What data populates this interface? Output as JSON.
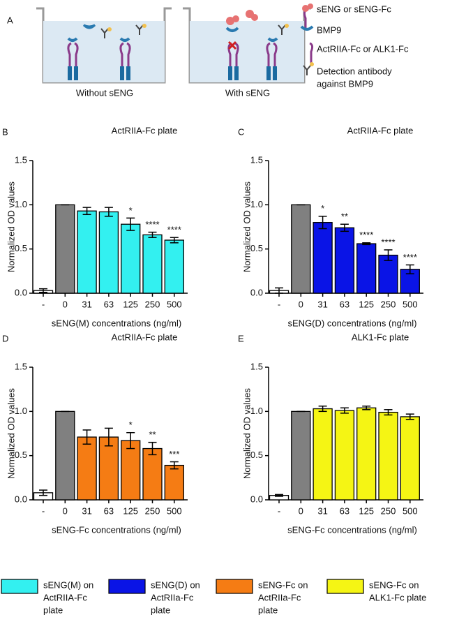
{
  "diagram": {
    "panel_label": "A",
    "caption_left": "Without sENG",
    "caption_right": "With sENG",
    "legend": [
      [
        "sENG or sENG-Fc"
      ],
      [
        "BMP9"
      ],
      [
        "ActRIIA-Fc or ALK1-Fc"
      ],
      [
        "Detection antibody",
        "against BMP9"
      ]
    ]
  },
  "chart_data": [
    {
      "type": "bar",
      "panel_label": "B",
      "title": "ActRIIA-Fc plate",
      "ylabel": "Normalized OD values",
      "xlabel": "sENG(M) concentrations (ng/ml)",
      "categories": [
        "-",
        "0",
        "31",
        "63",
        "125",
        "250",
        "500"
      ],
      "values": [
        0.03,
        1.0,
        0.93,
        0.92,
        0.78,
        0.66,
        0.6
      ],
      "errors": [
        0.02,
        0.0,
        0.04,
        0.05,
        0.07,
        0.03,
        0.03
      ],
      "annotations": [
        null,
        null,
        null,
        null,
        "*",
        "****",
        "****"
      ],
      "bar_colors": [
        "#ffffff",
        "#808080",
        "#33f0f0",
        "#33f0f0",
        "#33f0f0",
        "#33f0f0",
        "#33f0f0"
      ],
      "ylim": [
        0,
        1.5
      ],
      "yticks": [
        {
          "value": 0,
          "label": "0.0"
        },
        {
          "value": 0.5,
          "label": "0.5"
        },
        {
          "value": 1,
          "label": "1.0"
        },
        {
          "value": 1.5,
          "label": "1.5"
        }
      ]
    },
    {
      "type": "bar",
      "panel_label": "C",
      "title": "ActRIIA-Fc plate",
      "ylabel": "Normalized OD values",
      "xlabel": "sENG(D) concentrations (ng/ml)",
      "categories": [
        "-",
        "0",
        "31",
        "63",
        "125",
        "250",
        "500"
      ],
      "values": [
        0.03,
        1.0,
        0.8,
        0.74,
        0.56,
        0.43,
        0.27
      ],
      "errors": [
        0.03,
        0.0,
        0.07,
        0.04,
        0.01,
        0.06,
        0.05
      ],
      "annotations": [
        null,
        null,
        "*",
        "**",
        "****",
        "****",
        "****"
      ],
      "bar_colors": [
        "#ffffff",
        "#808080",
        "#0a14e6",
        "#0a14e6",
        "#0a14e6",
        "#0a14e6",
        "#0a14e6"
      ],
      "ylim": [
        0,
        1.5
      ],
      "yticks": [
        {
          "value": 0,
          "label": "0.0"
        },
        {
          "value": 0.5,
          "label": "0.5"
        },
        {
          "value": 1,
          "label": "1.0"
        },
        {
          "value": 1.5,
          "label": "1.5"
        }
      ]
    },
    {
      "type": "bar",
      "panel_label": "D",
      "title": "ActRIIA-Fc plate",
      "ylabel": "Normalized OD values",
      "xlabel": "sENG-Fc concentrations (ng/ml)",
      "categories": [
        "-",
        "0",
        "31",
        "63",
        "125",
        "250",
        "500"
      ],
      "values": [
        0.08,
        1.0,
        0.71,
        0.71,
        0.67,
        0.58,
        0.39
      ],
      "errors": [
        0.03,
        0.0,
        0.08,
        0.1,
        0.09,
        0.07,
        0.04
      ],
      "annotations": [
        null,
        null,
        null,
        null,
        "*",
        "**",
        "***"
      ],
      "bar_colors": [
        "#ffffff",
        "#808080",
        "#f57c14",
        "#f57c14",
        "#f57c14",
        "#f57c14",
        "#f57c14"
      ],
      "ylim": [
        0,
        1.5
      ],
      "yticks": [
        {
          "value": 0,
          "label": "0.0"
        },
        {
          "value": 0.5,
          "label": "0.5"
        },
        {
          "value": 1,
          "label": "1.0"
        },
        {
          "value": 1.5,
          "label": "1.5"
        }
      ]
    },
    {
      "type": "bar",
      "panel_label": "E",
      "title": "ALK1-Fc plate",
      "ylabel": "Normalized OD values",
      "xlabel": "sENG-Fc concentrations (ng/ml)",
      "categories": [
        "-",
        "0",
        "31",
        "63",
        "125",
        "250",
        "500"
      ],
      "values": [
        0.05,
        1.0,
        1.03,
        1.01,
        1.04,
        0.99,
        0.94
      ],
      "errors": [
        0.01,
        0.0,
        0.03,
        0.03,
        0.02,
        0.03,
        0.03
      ],
      "annotations": [
        null,
        null,
        null,
        null,
        null,
        null,
        null
      ],
      "bar_colors": [
        "#ffffff",
        "#808080",
        "#f5f514",
        "#f5f514",
        "#f5f514",
        "#f5f514",
        "#f5f514"
      ],
      "ylim": [
        0,
        1.5
      ],
      "yticks": [
        {
          "value": 0,
          "label": "0.0"
        },
        {
          "value": 0.5,
          "label": "0.5"
        },
        {
          "value": 1,
          "label": "1.0"
        },
        {
          "value": 1.5,
          "label": "1.5"
        }
      ]
    }
  ],
  "legend": [
    {
      "lines": [
        "sENG(M) on",
        "ActRIIA-Fc",
        "plate"
      ],
      "color": "#33f0f0"
    },
    {
      "lines": [
        "sENG(D) on",
        "ActRIIa-Fc",
        "plate"
      ],
      "color": "#0a14e6"
    },
    {
      "lines": [
        "sENG-Fc on",
        "ActRIIa-Fc",
        "plate"
      ],
      "color": "#f57c14"
    },
    {
      "lines": [
        "sENG-Fc on",
        "ALK1-Fc plate"
      ],
      "color": "#f5f514"
    }
  ]
}
